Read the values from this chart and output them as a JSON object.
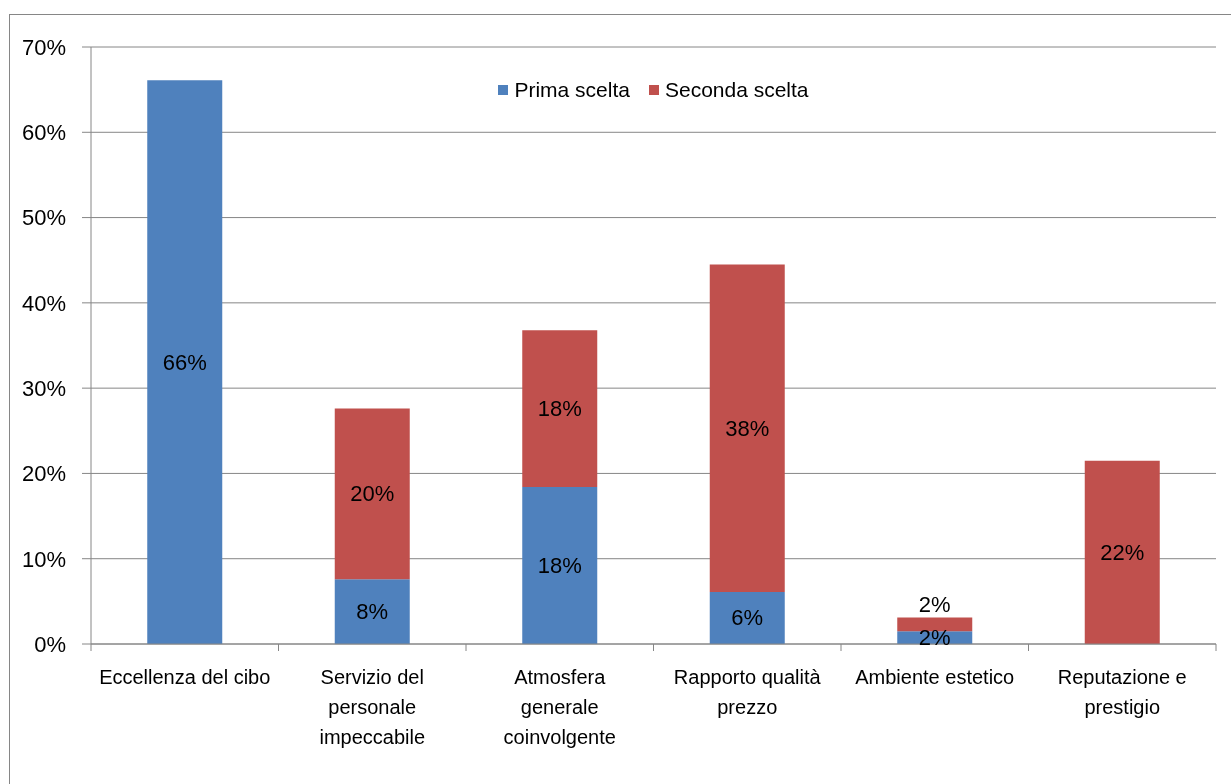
{
  "chart_data": {
    "type": "bar",
    "stacked": true,
    "categories": [
      "Eccellenza del cibo",
      "Servizio del personale impeccabile",
      "Atmosfera generale coinvolgente",
      "Rapporto qualità prezzo",
      "Ambiente estetico",
      "Reputazione e prestigio"
    ],
    "series": [
      {
        "name": "Prima scelta",
        "color": "#4f81bd",
        "values": [
          66.1,
          7.6,
          18.4,
          6.1,
          1.5,
          null
        ],
        "value_labels": [
          "66%",
          "8%",
          "18%",
          "6%",
          "2%",
          null
        ]
      },
      {
        "name": "Seconda scelta",
        "color": "#c0504d",
        "values": [
          null,
          20,
          18.4,
          38.4,
          1.6,
          21.5
        ],
        "value_labels": [
          null,
          "20%",
          "18%",
          "38%",
          "2%",
          "22%"
        ]
      }
    ],
    "ylim": [
      0,
      70
    ],
    "yticks": [
      {
        "value": 0,
        "label": "0%"
      },
      {
        "value": 10,
        "label": "10%"
      },
      {
        "value": 20,
        "label": "20%"
      },
      {
        "value": 30,
        "label": "30%"
      },
      {
        "value": 40,
        "label": "40%"
      },
      {
        "value": 50,
        "label": "50%"
      },
      {
        "value": 60,
        "label": "60%"
      },
      {
        "value": 70,
        "label": "70%"
      }
    ],
    "grid": "y",
    "legend": "top"
  }
}
